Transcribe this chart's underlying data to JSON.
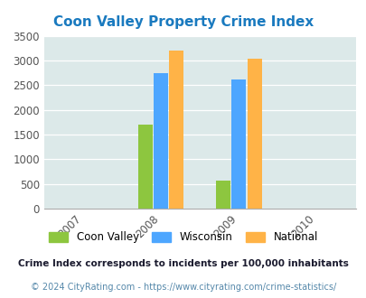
{
  "title": "Coon Valley Property Crime Index",
  "title_color": "#1a7abf",
  "bar_groups": {
    "2008": {
      "Coon Valley": 1700,
      "Wisconsin": 2750,
      "National": 3200
    },
    "2009": {
      "Coon Valley": 560,
      "Wisconsin": 2620,
      "National": 3030
    }
  },
  "bar_colors": {
    "Coon Valley": "#8dc63f",
    "Wisconsin": "#4da6ff",
    "National": "#ffb347"
  },
  "ylim": [
    0,
    3500
  ],
  "yticks": [
    0,
    500,
    1000,
    1500,
    2000,
    2500,
    3000,
    3500
  ],
  "xtick_labels": [
    "2007",
    "2008",
    "2009",
    "2010"
  ],
  "background_color": "#dce9e9",
  "legend_labels": [
    "Coon Valley",
    "Wisconsin",
    "National"
  ],
  "footnote1": "Crime Index corresponds to incidents per 100,000 inhabitants",
  "footnote2": "© 2024 CityRating.com - https://www.cityrating.com/crime-statistics/",
  "footnote1_color": "#1a1a2e",
  "footnote2_color": "#5588aa"
}
